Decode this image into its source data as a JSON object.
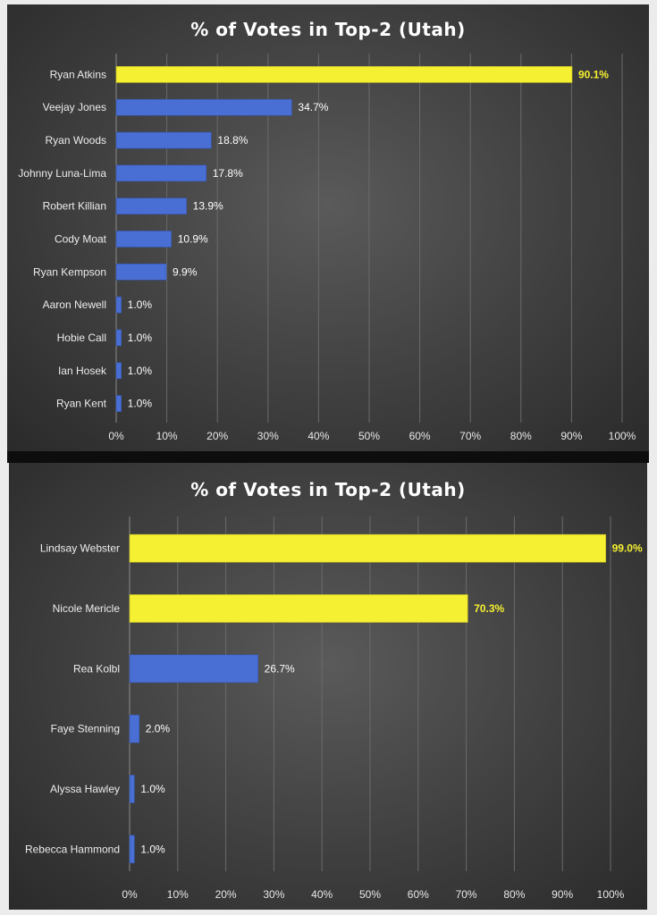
{
  "chart_data": [
    {
      "type": "bar",
      "orientation": "horizontal",
      "title": "% of Votes in Top-2 (Utah)",
      "categories": [
        "Ryan Atkins",
        "Veejay Jones",
        "Ryan Woods",
        "Johnny Luna-Lima",
        "Robert Killian",
        "Cody Moat",
        "Ryan Kempson",
        "Aaron Newell",
        "Hobie Call",
        "Ian Hosek",
        "Ryan Kent"
      ],
      "values": [
        90.1,
        34.7,
        18.8,
        17.8,
        13.9,
        10.9,
        9.9,
        1.0,
        1.0,
        1.0,
        1.0
      ],
      "data_labels": [
        "90.1%",
        "34.7%",
        "18.8%",
        "17.8%",
        "13.9%",
        "10.9%",
        "9.9%",
        "1.0%",
        "1.0%",
        "1.0%",
        "1.0%"
      ],
      "highlighted": [
        true,
        false,
        false,
        false,
        false,
        false,
        false,
        false,
        false,
        false,
        false
      ],
      "xlim": [
        0,
        100
      ],
      "xticks": [
        0,
        10,
        20,
        30,
        40,
        50,
        60,
        70,
        80,
        90,
        100
      ],
      "xtick_labels": [
        "0%",
        "10%",
        "20%",
        "30%",
        "40%",
        "50%",
        "60%",
        "70%",
        "80%",
        "90%",
        "100%"
      ],
      "grid": "vertical",
      "colors": {
        "highlight": "#f5f032",
        "normal": "#4a6fd4",
        "highlight_label": "#f5f032",
        "normal_label": "#ffffff"
      }
    },
    {
      "type": "bar",
      "orientation": "horizontal",
      "title": "% of Votes in Top-2 (Utah)",
      "categories": [
        "Lindsay Webster",
        "Nicole Mericle",
        "Rea Kolbl",
        "Faye Stenning",
        "Alyssa Hawley",
        "Rebecca Hammond"
      ],
      "values": [
        99.0,
        70.3,
        26.7,
        2.0,
        1.0,
        1.0
      ],
      "data_labels": [
        "99.0%",
        "70.3%",
        "26.7%",
        "2.0%",
        "1.0%",
        "1.0%"
      ],
      "highlighted": [
        true,
        true,
        false,
        false,
        false,
        false
      ],
      "xlim": [
        0,
        100
      ],
      "xticks": [
        0,
        10,
        20,
        30,
        40,
        50,
        60,
        70,
        80,
        90,
        100
      ],
      "xtick_labels": [
        "0%",
        "10%",
        "20%",
        "30%",
        "40%",
        "50%",
        "60%",
        "70%",
        "80%",
        "90%",
        "100%"
      ],
      "grid": "vertical",
      "colors": {
        "highlight": "#f5f032",
        "normal": "#4a6fd4",
        "highlight_label": "#f5f032",
        "normal_label": "#ffffff"
      }
    }
  ]
}
